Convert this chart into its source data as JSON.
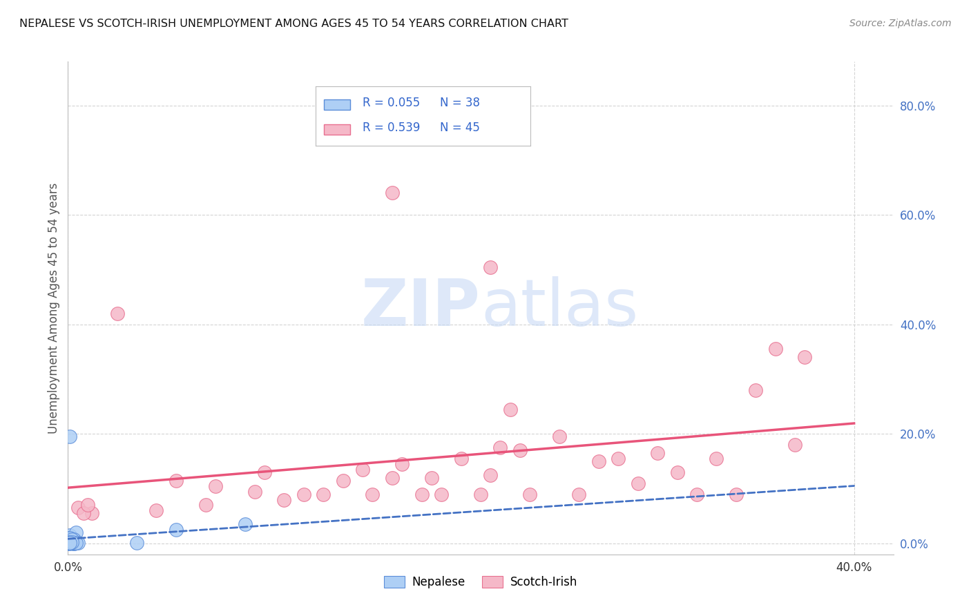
{
  "title": "NEPALESE VS SCOTCH-IRISH UNEMPLOYMENT AMONG AGES 45 TO 54 YEARS CORRELATION CHART",
  "source": "Source: ZipAtlas.com",
  "ylabel": "Unemployment Among Ages 45 to 54 years",
  "ytick_labels": [
    "0.0%",
    "20.0%",
    "40.0%",
    "60.0%",
    "80.0%"
  ],
  "ytick_values": [
    0.0,
    0.2,
    0.4,
    0.6,
    0.8
  ],
  "xtick_labels": [
    "0.0%",
    "40.0%"
  ],
  "xtick_values": [
    0.0,
    0.4
  ],
  "xlim": [
    0.0,
    0.42
  ],
  "ylim": [
    -0.02,
    0.88
  ],
  "nepalese_R": 0.055,
  "nepalese_N": 38,
  "scotchirish_R": 0.539,
  "scotchirish_N": 45,
  "nepalese_color": "#aecff5",
  "scotchirish_color": "#f5b8c8",
  "nepalese_edge_color": "#5b8dd9",
  "scotchirish_edge_color": "#e87090",
  "nepalese_line_color": "#4472c4",
  "scotchirish_line_color": "#e8547a",
  "legend_R_color": "#3366cc",
  "legend_N_color": "#3366cc",
  "watermark_color": "#c8daf5",
  "background_color": "#ffffff",
  "grid_color": "#d0d0d0",
  "nepalese_points": [
    [
      0.0,
      0.0
    ],
    [
      0.001,
      0.0
    ],
    [
      0.002,
      0.005
    ],
    [
      0.001,
      0.015
    ],
    [
      0.003,
      0.0
    ],
    [
      0.0,
      0.01
    ],
    [
      0.0,
      0.002
    ],
    [
      0.002,
      0.003
    ],
    [
      0.003,
      0.0
    ],
    [
      0.001,
      0.001
    ],
    [
      0.0,
      0.003
    ],
    [
      0.002,
      0.001
    ],
    [
      0.004,
      0.02
    ],
    [
      0.0,
      0.008
    ],
    [
      0.001,
      0.01
    ],
    [
      0.002,
      0.001
    ],
    [
      0.0,
      0.001
    ],
    [
      0.003,
      0.007
    ],
    [
      0.001,
      0.003
    ],
    [
      0.002,
      0.003
    ],
    [
      0.005,
      0.001
    ],
    [
      0.001,
      0.001
    ],
    [
      0.0,
      0.001
    ],
    [
      0.002,
      0.001
    ],
    [
      0.001,
      0.195
    ],
    [
      0.002,
      0.001
    ],
    [
      0.001,
      0.001
    ],
    [
      0.002,
      0.007
    ],
    [
      0.0,
      0.003
    ],
    [
      0.001,
      0.001
    ],
    [
      0.055,
      0.025
    ],
    [
      0.09,
      0.035
    ],
    [
      0.035,
      0.001
    ],
    [
      0.004,
      0.001
    ],
    [
      0.0,
      0.001
    ],
    [
      0.001,
      0.001
    ],
    [
      0.002,
      0.003
    ],
    [
      0.001,
      0.001
    ]
  ],
  "scotchirish_points": [
    [
      0.012,
      0.055
    ],
    [
      0.045,
      0.06
    ],
    [
      0.055,
      0.115
    ],
    [
      0.07,
      0.07
    ],
    [
      0.075,
      0.105
    ],
    [
      0.095,
      0.095
    ],
    [
      0.1,
      0.13
    ],
    [
      0.11,
      0.08
    ],
    [
      0.12,
      0.09
    ],
    [
      0.13,
      0.09
    ],
    [
      0.14,
      0.115
    ],
    [
      0.15,
      0.135
    ],
    [
      0.155,
      0.09
    ],
    [
      0.165,
      0.12
    ],
    [
      0.17,
      0.145
    ],
    [
      0.18,
      0.09
    ],
    [
      0.185,
      0.12
    ],
    [
      0.19,
      0.09
    ],
    [
      0.2,
      0.155
    ],
    [
      0.21,
      0.09
    ],
    [
      0.215,
      0.125
    ],
    [
      0.22,
      0.175
    ],
    [
      0.225,
      0.245
    ],
    [
      0.23,
      0.17
    ],
    [
      0.235,
      0.09
    ],
    [
      0.25,
      0.195
    ],
    [
      0.26,
      0.09
    ],
    [
      0.27,
      0.15
    ],
    [
      0.28,
      0.155
    ],
    [
      0.29,
      0.11
    ],
    [
      0.3,
      0.165
    ],
    [
      0.31,
      0.13
    ],
    [
      0.32,
      0.09
    ],
    [
      0.33,
      0.155
    ],
    [
      0.34,
      0.09
    ],
    [
      0.35,
      0.28
    ],
    [
      0.36,
      0.355
    ],
    [
      0.37,
      0.18
    ],
    [
      0.375,
      0.34
    ],
    [
      0.025,
      0.42
    ],
    [
      0.005,
      0.065
    ],
    [
      0.008,
      0.055
    ],
    [
      0.01,
      0.07
    ],
    [
      0.165,
      0.64
    ],
    [
      0.215,
      0.505
    ]
  ]
}
